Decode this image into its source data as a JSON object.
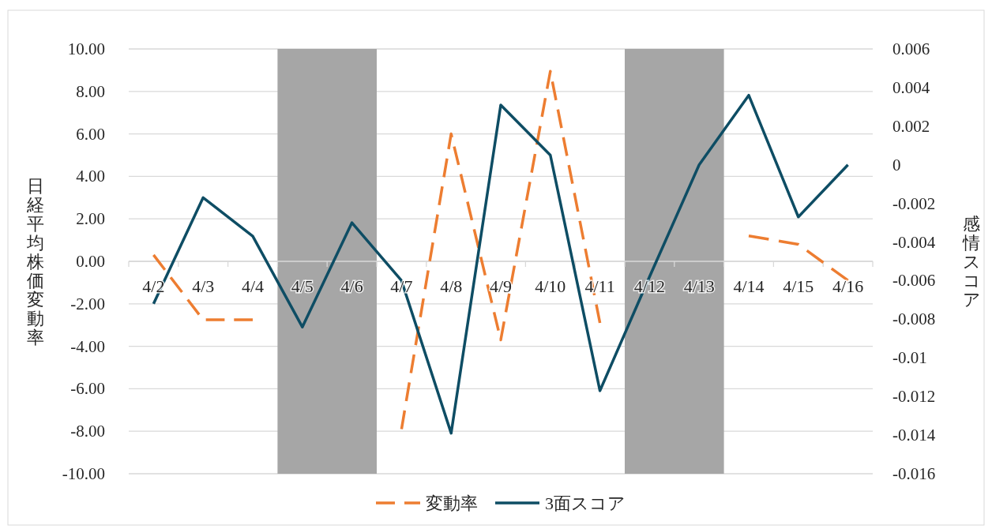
{
  "chart_data": {
    "type": "line",
    "ylabel": "日経平均株価変動率",
    "y2label": "感情スコア",
    "categories": [
      "4/2",
      "4/3",
      "4/4",
      "4/5",
      "4/6",
      "4/7",
      "4/8",
      "4/9",
      "4/10",
      "4/11",
      "4/12",
      "4/13",
      "4/14",
      "4/15",
      "4/16"
    ],
    "series": [
      {
        "name": "変動率",
        "color": "#ed7d31",
        "line_style": "dashed",
        "values": [
          0.3,
          -2.75,
          -2.75,
          null,
          null,
          -7.9,
          6.0,
          -3.7,
          8.95,
          -2.9,
          null,
          null,
          1.2,
          0.8,
          -0.9
        ]
      },
      {
        "name": "3面スコア",
        "color": "#0e4d64",
        "line_style": "solid",
        "axis": "y2",
        "values": [
          -0.0072,
          -0.0017,
          -0.0037,
          -0.0084,
          -0.003,
          -0.006,
          -0.0139,
          0.0031,
          0.0005,
          -0.0117,
          -0.0058,
          0.0,
          0.0036,
          -0.0027,
          0.0
        ]
      }
    ],
    "ylim": [
      -10,
      10
    ],
    "yticks": [
      {
        "value": -10,
        "label": "-10.00"
      },
      {
        "value": -8,
        "label": "-8.00"
      },
      {
        "value": -6,
        "label": "-6.00"
      },
      {
        "value": -4,
        "label": "-4.00"
      },
      {
        "value": -2,
        "label": "-2.00"
      },
      {
        "value": 0,
        "label": "0.00"
      },
      {
        "value": 2,
        "label": "2.00"
      },
      {
        "value": 4,
        "label": "4.00"
      },
      {
        "value": 6,
        "label": "6.00"
      },
      {
        "value": 8,
        "label": "8.00"
      },
      {
        "value": 10,
        "label": "10.00"
      }
    ],
    "y2lim": [
      -0.016,
      0.006
    ],
    "y2ticks": [
      -0.016,
      -0.014,
      -0.012,
      -0.01,
      -0.008,
      -0.006,
      -0.004,
      -0.002,
      0,
      0.002,
      0.004,
      0.006
    ],
    "bands": [
      {
        "axis": "x",
        "from": "4/5",
        "to": "4/6",
        "color": "#a6a6a6"
      },
      {
        "axis": "x",
        "from": "4/12",
        "to": "4/13",
        "color": "#a6a6a6"
      }
    ],
    "grid": "y",
    "legend": "bottom",
    "marker": "none"
  }
}
